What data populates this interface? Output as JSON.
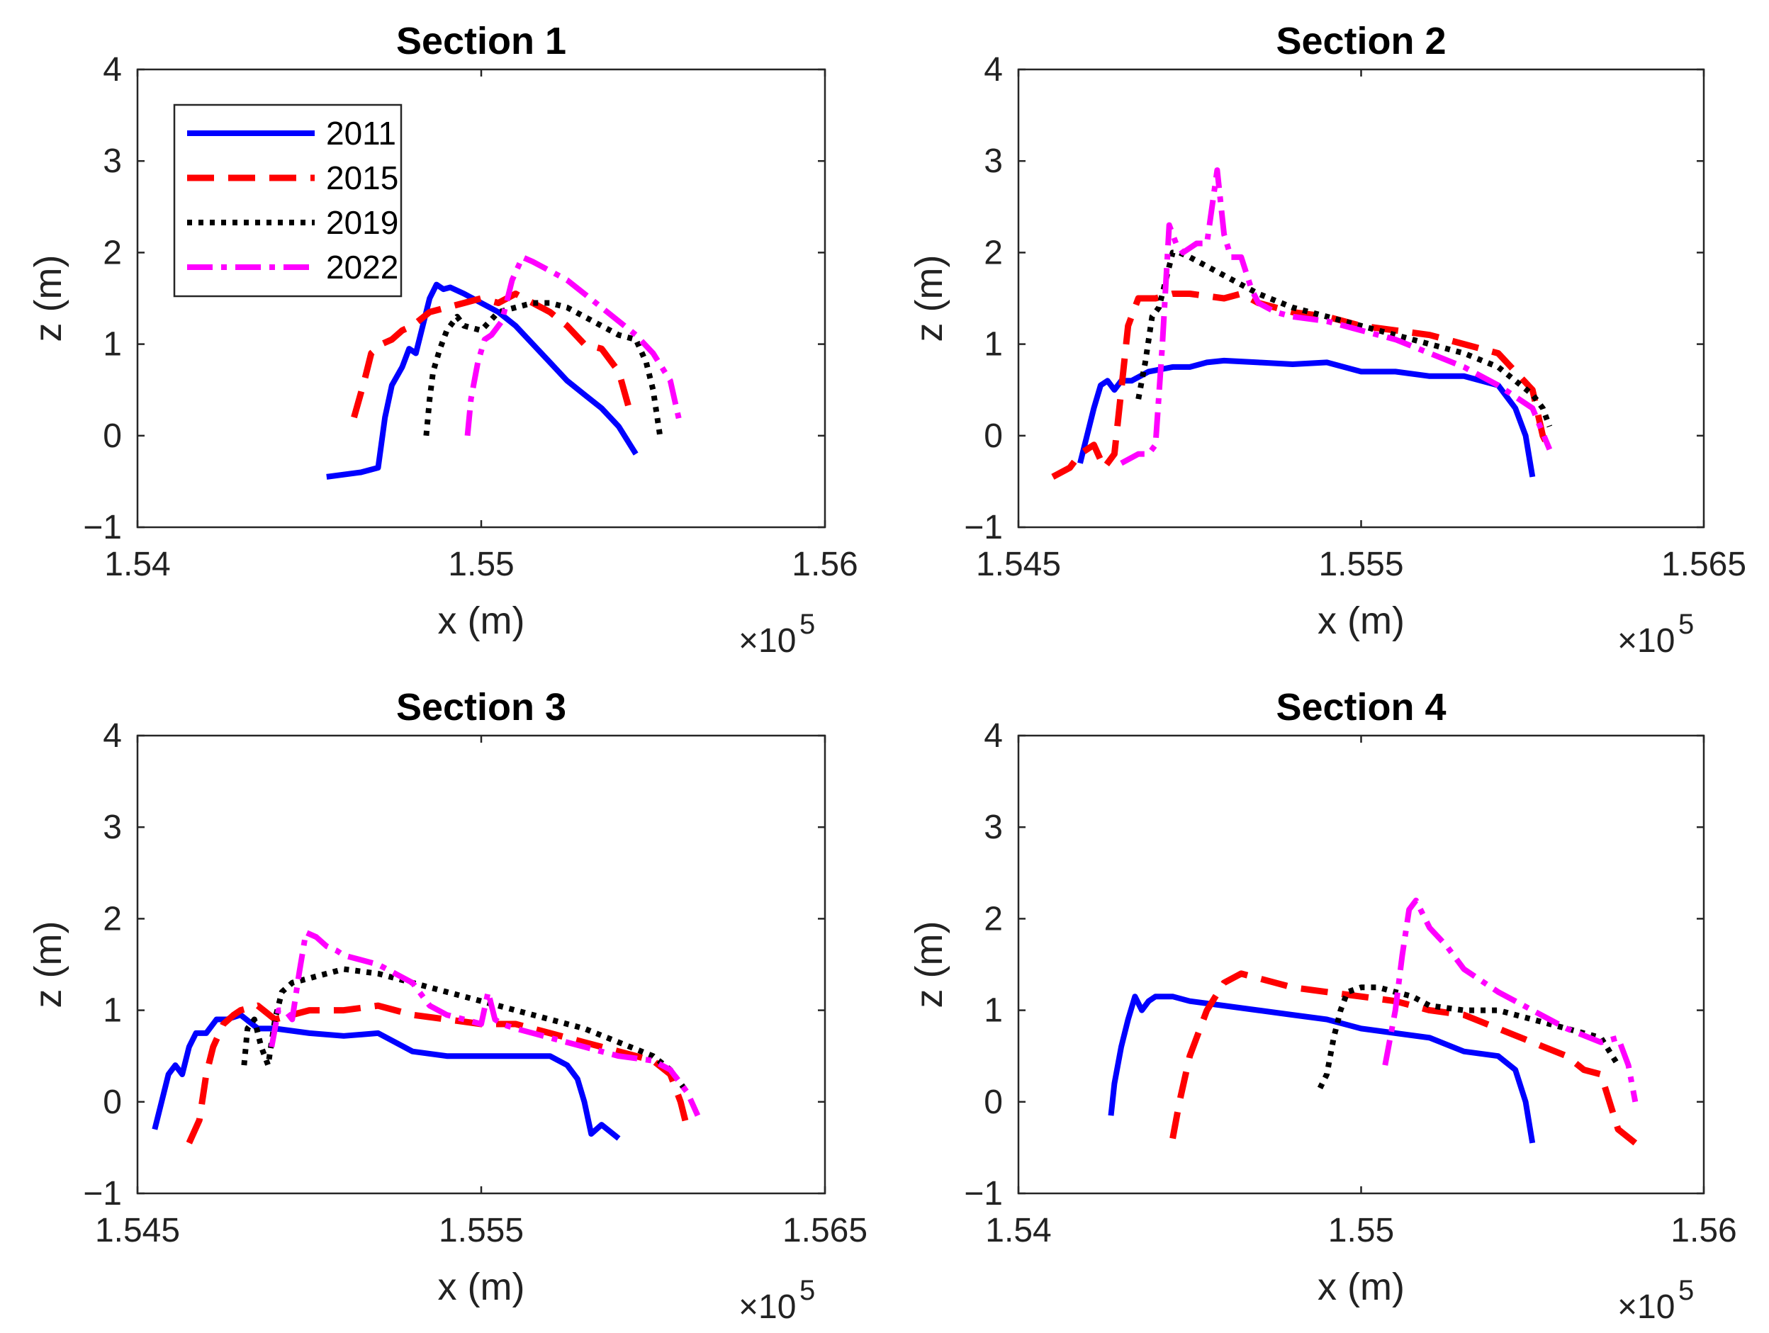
{
  "chart_data": [
    {
      "type": "line",
      "title": "Section 1",
      "xlabel": "x (m)",
      "ylabel": "z (m)",
      "x_multiplier": "×10",
      "x_exponent": "5",
      "xlim": [
        1.54,
        1.56
      ],
      "ylim": [
        -1,
        4
      ],
      "xticks": [
        1.54,
        1.55,
        1.56
      ],
      "xtick_labels": [
        "1.54",
        "1.55",
        "1.56"
      ],
      "yticks": [
        -1,
        0,
        1,
        2,
        3,
        4
      ],
      "ytick_labels": [
        "−1",
        "0",
        "1",
        "2",
        "3",
        "4"
      ],
      "legend": true,
      "series": [
        {
          "name": "2011",
          "x": [
            1.5455,
            1.5465,
            1.547,
            1.5472,
            1.5474,
            1.5477,
            1.5479,
            1.5481,
            1.5483,
            1.5485,
            1.5487,
            1.5489,
            1.5491,
            1.5495,
            1.55,
            1.5505,
            1.551,
            1.5515,
            1.552,
            1.5525,
            1.553,
            1.5535,
            1.554,
            1.5545
          ],
          "y": [
            -0.45,
            -0.4,
            -0.35,
            0.2,
            0.55,
            0.75,
            0.95,
            0.9,
            1.2,
            1.5,
            1.65,
            1.6,
            1.62,
            1.55,
            1.45,
            1.35,
            1.2,
            1.0,
            0.8,
            0.6,
            0.45,
            0.3,
            0.1,
            -0.2
          ]
        },
        {
          "name": "2015",
          "x": [
            1.5463,
            1.5466,
            1.5468,
            1.5471,
            1.5474,
            1.5477,
            1.548,
            1.5485,
            1.549,
            1.5495,
            1.55,
            1.5505,
            1.551,
            1.5515,
            1.552,
            1.5525,
            1.553,
            1.5535,
            1.554,
            1.5543
          ],
          "y": [
            0.2,
            0.6,
            0.9,
            1.0,
            1.05,
            1.15,
            1.2,
            1.35,
            1.4,
            1.45,
            1.5,
            1.45,
            1.55,
            1.45,
            1.35,
            1.2,
            1.0,
            0.95,
            0.7,
            0.3
          ]
        },
        {
          "name": "2019",
          "x": [
            1.5484,
            1.5485,
            1.5486,
            1.5488,
            1.549,
            1.5493,
            1.5495,
            1.55,
            1.5505,
            1.551,
            1.5515,
            1.552,
            1.5525,
            1.553,
            1.5535,
            1.554,
            1.5545,
            1.5548,
            1.555,
            1.5552
          ],
          "y": [
            0.0,
            0.4,
            0.7,
            0.95,
            1.15,
            1.3,
            1.2,
            1.15,
            1.35,
            1.4,
            1.45,
            1.45,
            1.4,
            1.3,
            1.2,
            1.1,
            1.05,
            0.8,
            0.5,
            0.0
          ]
        },
        {
          "name": "2022",
          "x": [
            1.5496,
            1.5497,
            1.5499,
            1.5501,
            1.5503,
            1.5506,
            1.5509,
            1.5512,
            1.5515,
            1.552,
            1.5525,
            1.553,
            1.5535,
            1.554,
            1.5545,
            1.555,
            1.5555,
            1.5558
          ],
          "y": [
            0.0,
            0.4,
            0.8,
            1.05,
            1.1,
            1.25,
            1.7,
            1.95,
            1.9,
            1.8,
            1.7,
            1.55,
            1.4,
            1.25,
            1.1,
            0.9,
            0.6,
            0.1
          ]
        }
      ]
    },
    {
      "type": "line",
      "title": "Section 2",
      "xlabel": "x (m)",
      "ylabel": "z (m)",
      "x_multiplier": "×10",
      "x_exponent": "5",
      "xlim": [
        1.545,
        1.565
      ],
      "ylim": [
        -1,
        4
      ],
      "xticks": [
        1.545,
        1.555,
        1.565
      ],
      "xtick_labels": [
        "1.545",
        "1.555",
        "1.565"
      ],
      "yticks": [
        -1,
        0,
        1,
        2,
        3,
        4
      ],
      "ytick_labels": [
        "−1",
        "0",
        "1",
        "2",
        "3",
        "4"
      ],
      "legend": false,
      "series": [
        {
          "name": "2011",
          "x": [
            1.5468,
            1.547,
            1.5472,
            1.5474,
            1.5476,
            1.5478,
            1.548,
            1.5483,
            1.5488,
            1.5495,
            1.55,
            1.5505,
            1.551,
            1.552,
            1.553,
            1.554,
            1.555,
            1.556,
            1.557,
            1.558,
            1.559,
            1.5595,
            1.5598,
            1.56
          ],
          "y": [
            -0.3,
            0.0,
            0.3,
            0.55,
            0.6,
            0.5,
            0.6,
            0.6,
            0.7,
            0.75,
            0.75,
            0.8,
            0.82,
            0.8,
            0.78,
            0.8,
            0.7,
            0.7,
            0.65,
            0.65,
            0.55,
            0.3,
            0.0,
            -0.45
          ]
        },
        {
          "name": "2015",
          "x": [
            1.546,
            1.5465,
            1.5468,
            1.5472,
            1.5475,
            1.5478,
            1.548,
            1.5482,
            1.5485,
            1.549,
            1.5495,
            1.55,
            1.551,
            1.5515,
            1.552,
            1.553,
            1.554,
            1.555,
            1.556,
            1.557,
            1.558,
            1.559,
            1.5595,
            1.56,
            1.5603,
            1.5605
          ],
          "y": [
            -0.45,
            -0.35,
            -0.2,
            -0.1,
            -0.35,
            -0.2,
            0.5,
            1.2,
            1.5,
            1.5,
            1.55,
            1.55,
            1.5,
            1.55,
            1.45,
            1.35,
            1.3,
            1.2,
            1.15,
            1.1,
            1.0,
            0.9,
            0.7,
            0.5,
            0.0,
            -0.15
          ]
        },
        {
          "name": "2019",
          "x": [
            1.5485,
            1.5487,
            1.5489,
            1.5491,
            1.5493,
            1.5495,
            1.5497,
            1.55,
            1.5505,
            1.551,
            1.5515,
            1.552,
            1.553,
            1.554,
            1.555,
            1.556,
            1.557,
            1.558,
            1.559,
            1.5595,
            1.56,
            1.5603,
            1.5605
          ],
          "y": [
            0.4,
            0.8,
            1.3,
            1.4,
            1.7,
            2.0,
            2.0,
            1.95,
            1.85,
            1.75,
            1.65,
            1.55,
            1.4,
            1.3,
            1.2,
            1.1,
            1.0,
            0.9,
            0.75,
            0.6,
            0.45,
            0.3,
            0.1
          ]
        },
        {
          "name": "2022",
          "x": [
            1.548,
            1.5485,
            1.5488,
            1.549,
            1.5492,
            1.5494,
            1.5496,
            1.5498,
            1.55,
            1.5502,
            1.5505,
            1.5508,
            1.551,
            1.5512,
            1.5515,
            1.5518,
            1.552,
            1.5525,
            1.553,
            1.554,
            1.555,
            1.556,
            1.557,
            1.558,
            1.559,
            1.56,
            1.5605
          ],
          "y": [
            -0.3,
            -0.2,
            -0.2,
            -0.1,
            1.0,
            2.3,
            2.1,
            2.0,
            2.05,
            2.1,
            2.1,
            2.9,
            2.2,
            1.95,
            1.95,
            1.6,
            1.45,
            1.35,
            1.3,
            1.25,
            1.15,
            1.05,
            0.9,
            0.75,
            0.55,
            0.3,
            -0.15
          ]
        }
      ]
    },
    {
      "type": "line",
      "title": "Section 3",
      "xlabel": "x (m)",
      "ylabel": "z (m)",
      "x_multiplier": "×10",
      "x_exponent": "5",
      "xlim": [
        1.545,
        1.565
      ],
      "ylim": [
        -1,
        4
      ],
      "xticks": [
        1.545,
        1.555,
        1.565
      ],
      "xtick_labels": [
        "1.545",
        "1.555",
        "1.565"
      ],
      "yticks": [
        -1,
        0,
        1,
        2,
        3,
        4
      ],
      "ytick_labels": [
        "−1",
        "0",
        "1",
        "2",
        "3",
        "4"
      ],
      "legend": false,
      "series": [
        {
          "name": "2011",
          "x": [
            1.5455,
            1.5457,
            1.5459,
            1.5461,
            1.5463,
            1.5465,
            1.5467,
            1.547,
            1.5473,
            1.5476,
            1.548,
            1.5485,
            1.549,
            1.55,
            1.551,
            1.552,
            1.553,
            1.554,
            1.555,
            1.556,
            1.557,
            1.5575,
            1.5578,
            1.558,
            1.5582,
            1.5585,
            1.559
          ],
          "y": [
            -0.3,
            0.0,
            0.3,
            0.4,
            0.3,
            0.6,
            0.75,
            0.75,
            0.9,
            0.9,
            0.95,
            0.8,
            0.8,
            0.75,
            0.72,
            0.75,
            0.55,
            0.5,
            0.5,
            0.5,
            0.5,
            0.4,
            0.25,
            0.0,
            -0.35,
            -0.25,
            -0.4
          ]
        },
        {
          "name": "2015",
          "x": [
            1.5465,
            1.5468,
            1.547,
            1.5472,
            1.5475,
            1.5478,
            1.548,
            1.5485,
            1.549,
            1.55,
            1.551,
            1.552,
            1.553,
            1.554,
            1.555,
            1.556,
            1.557,
            1.558,
            1.559,
            1.56,
            1.5605,
            1.5608,
            1.561
          ],
          "y": [
            -0.45,
            -0.2,
            0.3,
            0.6,
            0.85,
            0.95,
            1.0,
            1.05,
            0.9,
            1.0,
            1.0,
            1.05,
            0.95,
            0.9,
            0.85,
            0.85,
            0.75,
            0.65,
            0.55,
            0.45,
            0.3,
            0.0,
            -0.3
          ]
        },
        {
          "name": "2019",
          "x": [
            1.5481,
            1.5482,
            1.5484,
            1.5486,
            1.5488,
            1.549,
            1.5492,
            1.5495,
            1.55,
            1.5505,
            1.551,
            1.552,
            1.553,
            1.554,
            1.555,
            1.556,
            1.557,
            1.558,
            1.559,
            1.56,
            1.5605,
            1.561
          ],
          "y": [
            0.4,
            0.8,
            0.9,
            0.6,
            0.4,
            0.9,
            1.2,
            1.3,
            1.35,
            1.4,
            1.45,
            1.4,
            1.3,
            1.2,
            1.1,
            1.0,
            0.9,
            0.8,
            0.65,
            0.5,
            0.35,
            0.1
          ]
        },
        {
          "name": "2022",
          "x": [
            1.5489,
            1.5491,
            1.5493,
            1.5495,
            1.5497,
            1.5499,
            1.5502,
            1.5505,
            1.5508,
            1.551,
            1.5515,
            1.552,
            1.5525,
            1.553,
            1.5535,
            1.554,
            1.5545,
            1.555,
            1.5552,
            1.5554,
            1.5556,
            1.556,
            1.557,
            1.558,
            1.559,
            1.56,
            1.5605,
            1.561,
            1.5613
          ],
          "y": [
            0.6,
            1.0,
            1.0,
            0.9,
            1.4,
            1.85,
            1.8,
            1.7,
            1.65,
            1.6,
            1.55,
            1.5,
            1.4,
            1.3,
            1.05,
            0.95,
            0.9,
            0.85,
            1.2,
            0.9,
            0.85,
            0.8,
            0.7,
            0.6,
            0.5,
            0.45,
            0.35,
            0.1,
            -0.15
          ]
        }
      ]
    },
    {
      "type": "line",
      "title": "Section 4",
      "xlabel": "x (m)",
      "ylabel": "z (m)",
      "x_multiplier": "×10",
      "x_exponent": "5",
      "xlim": [
        1.54,
        1.56
      ],
      "ylim": [
        -1,
        4
      ],
      "xticks": [
        1.54,
        1.55,
        1.56
      ],
      "xtick_labels": [
        "1.54",
        "1.55",
        "1.56"
      ],
      "yticks": [
        -1,
        0,
        1,
        2,
        3,
        4
      ],
      "ytick_labels": [
        "−1",
        "0",
        "1",
        "2",
        "3",
        "4"
      ],
      "legend": false,
      "series": [
        {
          "name": "2011",
          "x": [
            1.5427,
            1.5428,
            1.543,
            1.5432,
            1.5434,
            1.5436,
            1.5438,
            1.544,
            1.5445,
            1.545,
            1.546,
            1.547,
            1.548,
            1.549,
            1.55,
            1.551,
            1.552,
            1.553,
            1.554,
            1.5545,
            1.5548,
            1.555
          ],
          "y": [
            -0.15,
            0.2,
            0.6,
            0.9,
            1.15,
            1.0,
            1.1,
            1.15,
            1.15,
            1.1,
            1.05,
            1.0,
            0.95,
            0.9,
            0.8,
            0.75,
            0.7,
            0.55,
            0.5,
            0.35,
            0.0,
            -0.45
          ]
        },
        {
          "name": "2015",
          "x": [
            1.5445,
            1.5447,
            1.545,
            1.5455,
            1.546,
            1.5465,
            1.547,
            1.5475,
            1.548,
            1.549,
            1.55,
            1.551,
            1.552,
            1.553,
            1.554,
            1.555,
            1.556,
            1.5565,
            1.557,
            1.5575,
            1.558
          ],
          "y": [
            -0.4,
            0.0,
            0.5,
            1.0,
            1.3,
            1.4,
            1.35,
            1.3,
            1.25,
            1.2,
            1.15,
            1.1,
            1.0,
            0.95,
            0.8,
            0.65,
            0.5,
            0.35,
            0.3,
            -0.3,
            -0.45
          ]
        },
        {
          "name": "2019",
          "x": [
            1.5488,
            1.549,
            1.5492,
            1.5494,
            1.5496,
            1.55,
            1.5505,
            1.551,
            1.5515,
            1.552,
            1.553,
            1.554,
            1.555,
            1.556,
            1.557,
            1.5575
          ],
          "y": [
            0.15,
            0.3,
            0.7,
            1.0,
            1.2,
            1.25,
            1.25,
            1.2,
            1.15,
            1.05,
            1.0,
            1.0,
            0.9,
            0.8,
            0.7,
            0.4
          ]
        },
        {
          "name": "2022",
          "x": [
            1.5507,
            1.5509,
            1.551,
            1.5512,
            1.5514,
            1.5516,
            1.5518,
            1.552,
            1.5525,
            1.553,
            1.554,
            1.555,
            1.556,
            1.557,
            1.5575,
            1.5578,
            1.558
          ],
          "y": [
            0.4,
            0.8,
            1.0,
            1.6,
            2.1,
            2.2,
            2.05,
            1.9,
            1.7,
            1.45,
            1.2,
            1.0,
            0.8,
            0.65,
            0.7,
            0.4,
            0.0
          ]
        }
      ]
    }
  ],
  "series_styles": {
    "2011": {
      "color": "#0000ff",
      "dash": "solid"
    },
    "2015": {
      "color": "#ff0000",
      "dash": "dashed"
    },
    "2019": {
      "color": "#000000",
      "dash": "dotted"
    },
    "2022": {
      "color": "#ff00ff",
      "dash": "dash-dot"
    }
  }
}
